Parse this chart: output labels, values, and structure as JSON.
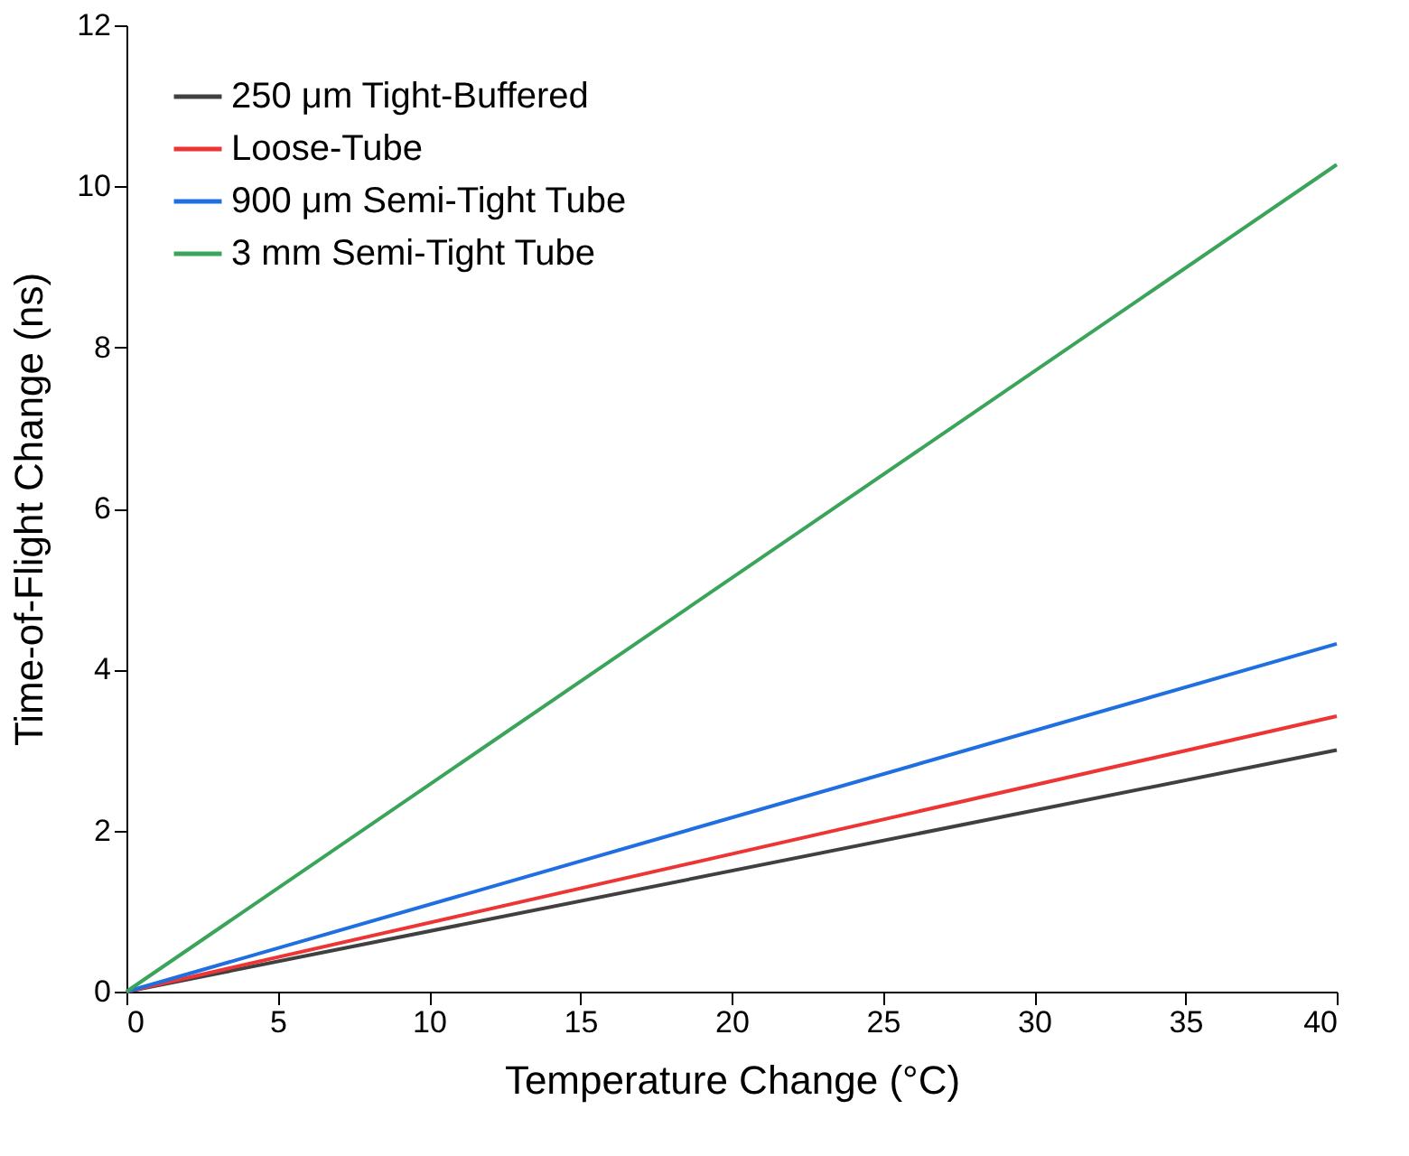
{
  "chart_data": {
    "type": "line",
    "xlabel": "Temperature Change (°C)",
    "ylabel": "Time-of-Flight Change (ns)",
    "x": [
      0,
      40
    ],
    "series": [
      {
        "name": "250 μm Tight-Buffered",
        "color": "#404040",
        "values": [
          0,
          3.0
        ]
      },
      {
        "name": "Loose-Tube",
        "color": "#ee3535",
        "values": [
          0,
          3.42
        ]
      },
      {
        "name": "900 μm Semi-Tight Tube",
        "color": "#1f6fe0",
        "values": [
          0,
          4.32
        ]
      },
      {
        "name": "3 mm Semi-Tight Tube",
        "color": "#3aa55a",
        "values": [
          0,
          10.27
        ]
      }
    ],
    "xlim": [
      0,
      40
    ],
    "xticks": [
      0,
      5,
      10,
      15,
      20,
      25,
      30,
      35,
      40
    ],
    "ylim": [
      0,
      12
    ],
    "yticks": [
      0,
      2,
      4,
      6,
      8,
      10,
      12
    ],
    "grid": false,
    "legend": "top left",
    "marker": "none",
    "line_style": "solid"
  }
}
